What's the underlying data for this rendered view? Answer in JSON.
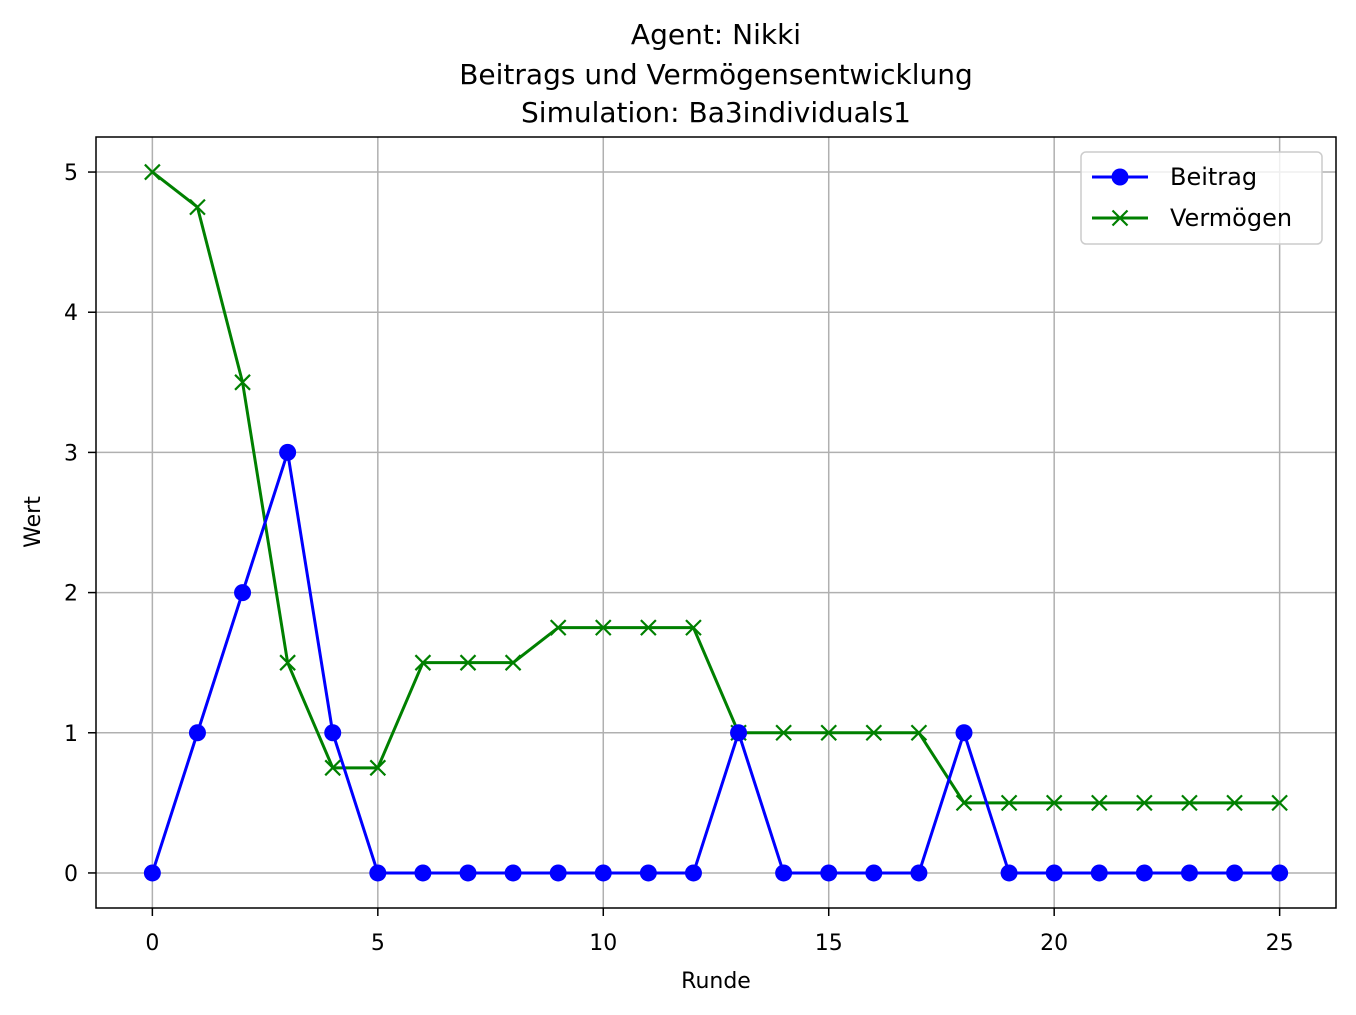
{
  "chart_data": {
    "type": "line",
    "title_lines": [
      "Agent: Nikki",
      "Beitrags und Vermögensentwicklung",
      "Simulation: Ba3individuals1"
    ],
    "xlabel": "Runde",
    "ylabel": "Wert",
    "x": [
      0,
      1,
      2,
      3,
      4,
      5,
      6,
      7,
      8,
      9,
      10,
      11,
      12,
      13,
      14,
      15,
      16,
      17,
      18,
      19,
      20,
      21,
      22,
      23,
      24,
      25
    ],
    "xlim": [
      -1.25,
      26.25
    ],
    "ylim": [
      -0.25,
      5.25
    ],
    "xticks": [
      0,
      5,
      10,
      15,
      20,
      25
    ],
    "yticks": [
      0,
      1,
      2,
      3,
      4,
      5
    ],
    "grid": true,
    "legend_position": "top-right",
    "series": [
      {
        "name": "Beitrag",
        "color": "#0000ff",
        "marker": "circle",
        "values": [
          0,
          1,
          2,
          3,
          1,
          0,
          0,
          0,
          0,
          0,
          0,
          0,
          0,
          1,
          0,
          0,
          0,
          0,
          1,
          0,
          0,
          0,
          0,
          0,
          0,
          0
        ]
      },
      {
        "name": "Vermögen",
        "color": "#008000",
        "marker": "x",
        "values": [
          5,
          4.75,
          3.5,
          1.5,
          0.75,
          0.75,
          1.5,
          1.5,
          1.5,
          1.75,
          1.75,
          1.75,
          1.75,
          1,
          1,
          1,
          1,
          1,
          0.5,
          0.5,
          0.5,
          0.5,
          0.5,
          0.5,
          0.5,
          0.5
        ]
      }
    ]
  }
}
